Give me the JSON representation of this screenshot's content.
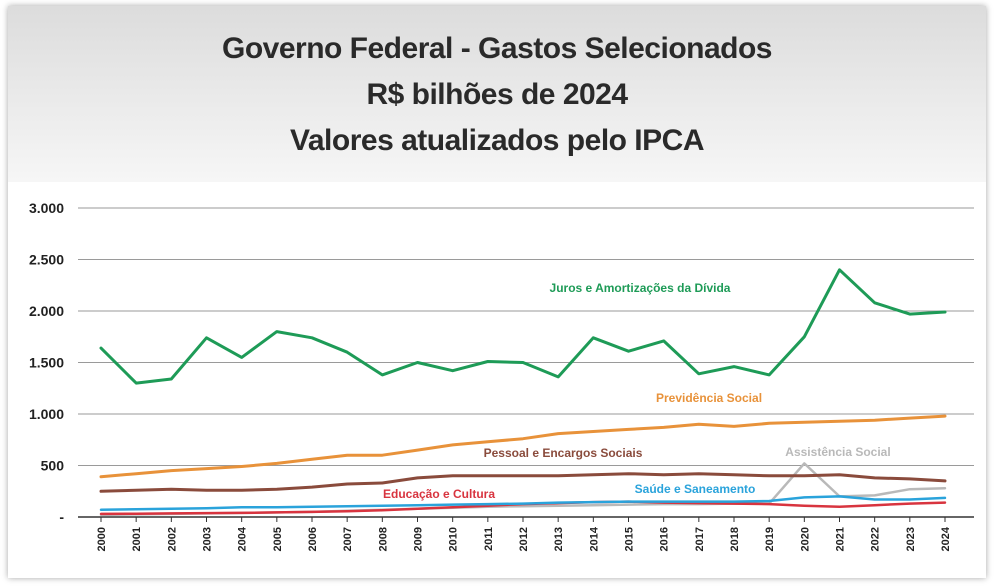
{
  "chart_data": {
    "type": "line",
    "title": [
      "Governo Federal - Gastos Selecionados",
      "R$ bilhões de 2024",
      "Valores atualizados pelo IPCA"
    ],
    "ylim": [
      0,
      3000
    ],
    "yticks": [
      {
        "value": 0,
        "label": "-"
      },
      {
        "value": 500,
        "label": "500"
      },
      {
        "value": 1000,
        "label": "1.000"
      },
      {
        "value": 1500,
        "label": "1.500"
      },
      {
        "value": 2000,
        "label": "2.000"
      },
      {
        "value": 2500,
        "label": "2.500"
      },
      {
        "value": 3000,
        "label": "3.000"
      }
    ],
    "grid": "horizontal",
    "categories": [
      "2000",
      "2001",
      "2002",
      "2003",
      "2004",
      "2005",
      "2006",
      "2007",
      "2008",
      "2009",
      "2010",
      "2011",
      "2012",
      "2013",
      "2014",
      "2015",
      "2016",
      "2017",
      "2018",
      "2019",
      "2020",
      "2021",
      "2022",
      "2023",
      "2024"
    ],
    "series": [
      {
        "name": "Juros e Amortizações da Dívida",
        "color": "#1e9b57",
        "values": [
          1640,
          1300,
          1340,
          1740,
          1550,
          1800,
          1740,
          1600,
          1380,
          1500,
          1420,
          1510,
          1500,
          1360,
          1740,
          1610,
          1710,
          1390,
          1460,
          1380,
          1750,
          2400,
          2080,
          1970,
          1990
        ]
      },
      {
        "name": "Previdência Social",
        "color": "#e8923a",
        "values": [
          390,
          420,
          450,
          470,
          490,
          520,
          560,
          600,
          600,
          650,
          700,
          730,
          760,
          810,
          830,
          850,
          870,
          900,
          880,
          910,
          920,
          930,
          940,
          960,
          980
        ]
      },
      {
        "name": "Pessoal e Encargos Sociais",
        "color": "#8a4b3c",
        "values": [
          250,
          260,
          270,
          260,
          260,
          270,
          290,
          320,
          330,
          380,
          400,
          400,
          400,
          400,
          410,
          420,
          410,
          420,
          410,
          400,
          400,
          410,
          380,
          370,
          350
        ]
      },
      {
        "name": "Assistência Social",
        "color": "#b9b9b9",
        "values": [
          20,
          25,
          30,
          35,
          40,
          45,
          50,
          60,
          70,
          80,
          90,
          100,
          105,
          110,
          115,
          120,
          125,
          125,
          130,
          130,
          520,
          200,
          210,
          270,
          280
        ]
      },
      {
        "name": "Saúde e Saneamento",
        "color": "#2aa3db",
        "values": [
          70,
          75,
          80,
          85,
          95,
          95,
          100,
          105,
          110,
          115,
          120,
          125,
          130,
          140,
          145,
          150,
          150,
          150,
          150,
          155,
          190,
          200,
          170,
          170,
          185
        ]
      },
      {
        "name": "Educação e Cultura",
        "color": "#d8343f",
        "values": [
          30,
          32,
          35,
          38,
          40,
          45,
          50,
          55,
          65,
          80,
          95,
          110,
          125,
          135,
          145,
          150,
          140,
          135,
          130,
          125,
          110,
          100,
          115,
          130,
          140
        ]
      }
    ]
  }
}
